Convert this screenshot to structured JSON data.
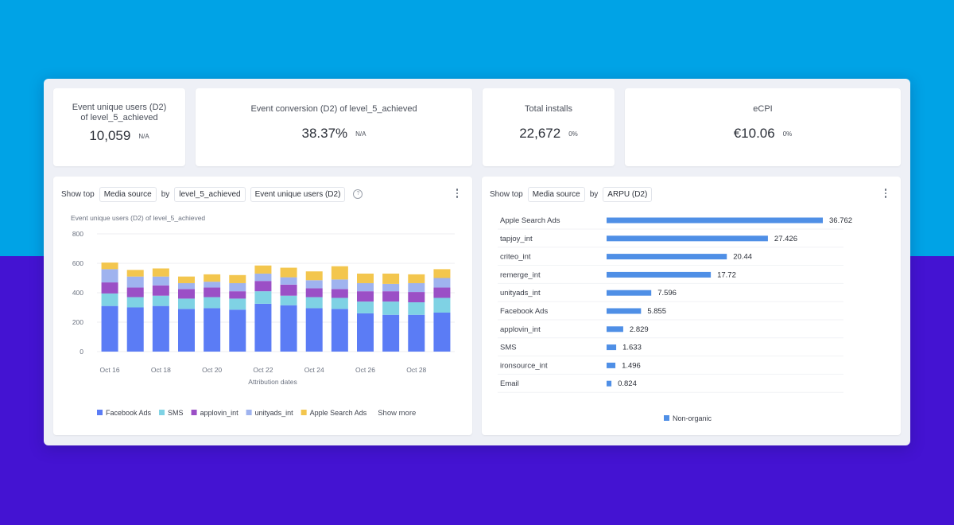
{
  "kpis": [
    {
      "title": "Event unique users (D2) of level_5_achieved",
      "value": "10,059",
      "delta": "N/A"
    },
    {
      "title": "Event conversion (D2) of level_5_achieved",
      "value": "38.37%",
      "delta": "N/A"
    },
    {
      "title": "Total installs",
      "value": "22,672",
      "delta": "0%"
    },
    {
      "title": "eCPI",
      "value": "€10.06",
      "delta": "0%"
    }
  ],
  "left_panel": {
    "show_top": "Show top",
    "group_by": "Media source",
    "by": "by",
    "event": "level_5_achieved",
    "metric": "Event unique users (D2)",
    "help_icon": "question-circle-icon",
    "menu_icon": "kebab-icon",
    "show_more": "Show more"
  },
  "right_panel": {
    "show_top": "Show top",
    "group_by": "Media source",
    "by": "by",
    "metric": "ARPU (D2)",
    "menu_icon": "kebab-icon"
  },
  "chart_data": [
    {
      "type": "bar",
      "stacked": true,
      "title": "Event unique users (D2) of level_5_achieved",
      "xlabel": "Attribution dates",
      "ylabel": "",
      "ylim": [
        0,
        800
      ],
      "yticks": [
        0,
        200,
        400,
        600,
        800
      ],
      "grid": "horizontal",
      "legend": "bottom",
      "x_tick_labels": [
        "Oct 16",
        "Oct 18",
        "Oct 20",
        "Oct 22",
        "Oct 24",
        "Oct 26",
        "Oct 28"
      ],
      "categories": [
        "Oct 16",
        "Oct 17",
        "Oct 18",
        "Oct 19",
        "Oct 20",
        "Oct 21",
        "Oct 22",
        "Oct 23",
        "Oct 24",
        "Oct 25",
        "Oct 26",
        "Oct 27",
        "Oct 28",
        "Oct 29"
      ],
      "series": [
        {
          "name": "Facebook Ads",
          "color": "#5b7cf5",
          "values": [
            310,
            300,
            310,
            290,
            295,
            285,
            325,
            315,
            295,
            290,
            260,
            250,
            250,
            265
          ]
        },
        {
          "name": "SMS",
          "color": "#7fd2e4",
          "values": [
            85,
            70,
            70,
            70,
            75,
            75,
            85,
            65,
            75,
            75,
            80,
            90,
            85,
            100
          ]
        },
        {
          "name": "applovin_int",
          "color": "#9b4fc6",
          "values": [
            75,
            65,
            70,
            65,
            65,
            50,
            70,
            75,
            60,
            60,
            70,
            70,
            70,
            70
          ]
        },
        {
          "name": "unityads_int",
          "color": "#9fb3ef",
          "values": [
            90,
            75,
            60,
            40,
            40,
            55,
            50,
            50,
            55,
            65,
            55,
            50,
            60,
            65
          ]
        },
        {
          "name": "Apple Search Ads",
          "color": "#f3c64e",
          "values": [
            45,
            45,
            55,
            45,
            50,
            55,
            55,
            65,
            60,
            90,
            65,
            70,
            60,
            60
          ]
        }
      ]
    },
    {
      "type": "bar",
      "orientation": "horizontal",
      "title": "",
      "legend": "bottom",
      "categories": [
        "Apple Search Ads",
        "tapjoy_int",
        "criteo_int",
        "remerge_int",
        "unityads_int",
        "Facebook Ads",
        "applovin_int",
        "SMS",
        "ironsource_int",
        "Email"
      ],
      "series": [
        {
          "name": "Non-organic",
          "color": "#4f8fe6",
          "values": [
            36.762,
            27.426,
            20.44,
            17.72,
            7.596,
            5.855,
            2.829,
            1.633,
            1.496,
            0.824
          ]
        }
      ],
      "value_labels": [
        "36.762",
        "27.426",
        "20.44",
        "17.72",
        "7.596",
        "5.855",
        "2.829",
        "1.633",
        "1.496",
        "0.824"
      ]
    }
  ],
  "colors": {
    "background_top": "#00a3e6",
    "background_bottom": "#4413d2",
    "accent_bar": "#4f8fe6"
  }
}
